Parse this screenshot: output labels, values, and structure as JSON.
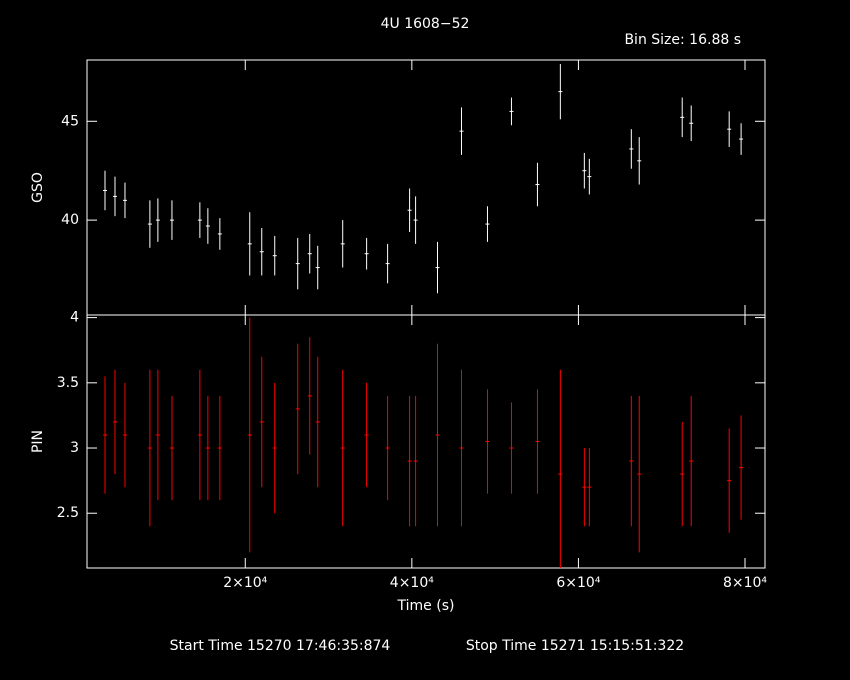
{
  "title": "4U 1608−52",
  "bin_size": "Bin Size: 16.88 s",
  "start_time": "Start Time 15270 17:46:35:874",
  "stop_time": "Stop Time 15271 15:15:51:322",
  "chart_data": [
    {
      "type": "errorbar",
      "y_label": "GSO",
      "color": "#ffffff",
      "x": [
        3160,
        4360,
        5560,
        8550,
        9510,
        11200,
        14550,
        15510,
        16950,
        20540,
        21980,
        23540,
        26300,
        27740,
        28700,
        31700,
        34570,
        37090,
        39730,
        40450,
        43080,
        45960,
        49080,
        51960,
        55080,
        57830,
        60710,
        61310,
        66350,
        67300,
        72460,
        73540,
        78100,
        79530
      ],
      "values": [
        41.5,
        41.2,
        41.0,
        39.8,
        40.0,
        40.0,
        40.0,
        39.7,
        39.3,
        38.8,
        38.4,
        38.2,
        37.8,
        38.3,
        37.6,
        38.8,
        38.3,
        37.8,
        40.5,
        40.0,
        37.6,
        44.5,
        39.8,
        45.5,
        41.8,
        46.5,
        42.5,
        42.2,
        43.6,
        43.0,
        45.2,
        44.9,
        44.6,
        44.1
      ],
      "errors": [
        1.0,
        1.0,
        0.9,
        1.2,
        1.1,
        1.0,
        0.9,
        0.9,
        0.8,
        1.6,
        1.2,
        1.0,
        1.3,
        1.0,
        1.1,
        1.2,
        0.8,
        1.0,
        1.1,
        1.2,
        1.3,
        1.2,
        0.9,
        0.7,
        1.1,
        1.4,
        0.9,
        0.9,
        1.0,
        1.2,
        1.0,
        0.9,
        0.9,
        0.8
      ],
      "xlim": [
        1000,
        82400
      ],
      "xticks": [
        20000,
        40000,
        60000,
        80000
      ],
      "ylim": [
        35.2,
        48.1
      ],
      "yticks": [
        40,
        45
      ]
    },
    {
      "type": "errorbar",
      "y_label": "PIN",
      "x_label": "Time (s)",
      "color": "#ff0000",
      "x": [
        3160,
        4360,
        5560,
        8550,
        9510,
        11200,
        14550,
        15510,
        16950,
        20540,
        21980,
        23540,
        26300,
        27740,
        28700,
        31700,
        34570,
        37090,
        39730,
        40450,
        43080,
        45960,
        49080,
        51960,
        55080,
        57830,
        60710,
        61310,
        66350,
        67300,
        72460,
        73540,
        78100,
        79530
      ],
      "values": [
        3.1,
        3.2,
        3.1,
        3.0,
        3.1,
        3.0,
        3.1,
        3.0,
        3.0,
        3.1,
        3.2,
        3.0,
        3.3,
        3.4,
        3.2,
        3.0,
        3.1,
        3.0,
        2.9,
        2.9,
        3.1,
        3.0,
        3.05,
        3.0,
        3.05,
        2.8,
        2.7,
        2.7,
        2.9,
        2.8,
        2.8,
        2.9,
        2.75,
        2.85
      ],
      "errors": [
        0.45,
        0.4,
        0.4,
        0.6,
        0.5,
        0.4,
        0.5,
        0.4,
        0.4,
        0.9,
        0.5,
        0.5,
        0.5,
        0.45,
        0.5,
        0.6,
        0.4,
        0.4,
        0.5,
        0.5,
        0.7,
        0.6,
        0.4,
        0.35,
        0.4,
        0.8,
        0.3,
        0.3,
        0.5,
        0.6,
        0.4,
        0.5,
        0.4,
        0.4
      ],
      "xlim": [
        1000,
        82400
      ],
      "xticks": [
        {
          "value": 20000,
          "label": "2×10⁴"
        },
        {
          "value": 40000,
          "label": "4×10⁴"
        },
        {
          "value": 60000,
          "label": "6×10⁴"
        },
        {
          "value": 80000,
          "label": "8×10⁴"
        }
      ],
      "ylim": [
        2.08,
        4.02
      ],
      "yticks": [
        2.5,
        3,
        3.5,
        4
      ]
    }
  ]
}
